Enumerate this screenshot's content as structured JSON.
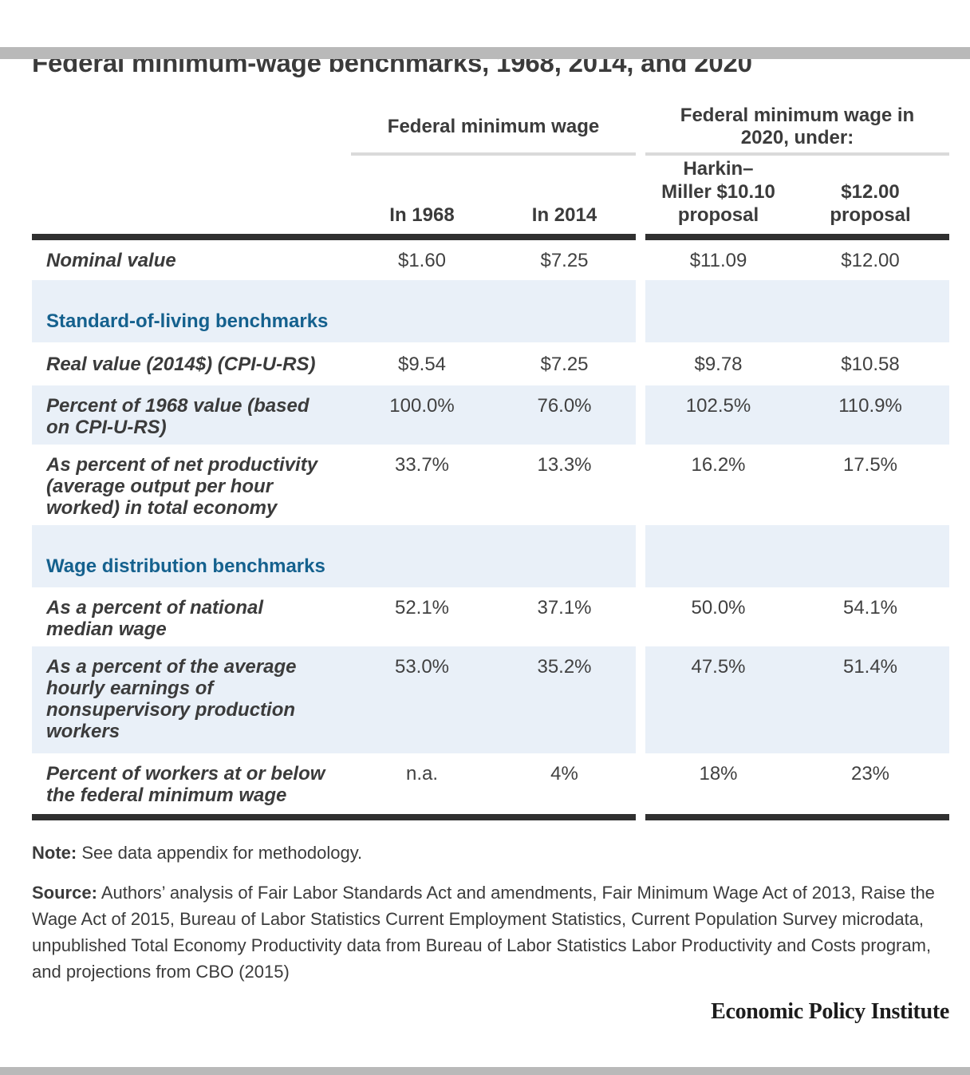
{
  "colors": {
    "accent_blue": "#15618e",
    "band_blue": "#e9f0f8",
    "bar_gray": "#b9b9b9",
    "rule_dark": "#303030",
    "text_dark": "#3b3b3b"
  },
  "chart_data": {
    "type": "table",
    "title": "Federal minimum-wage benchmarks, 1968, 2014, and 2020",
    "column_groups": [
      {
        "label": "Federal minimum wage"
      },
      {
        "label": "Federal minimum wage in\n2020, under:"
      }
    ],
    "columns": [
      {
        "label": "In 1968"
      },
      {
        "label": "In 2014"
      },
      {
        "label": "Harkin–\nMiller $10.10\nproposal"
      },
      {
        "label": "$12.00\nproposal"
      }
    ],
    "rows": [
      {
        "type": "data",
        "label": "Nominal value",
        "values": [
          "$1.60",
          "$7.25",
          "$11.09",
          "$12.00"
        ]
      },
      {
        "type": "section",
        "label": "Standard-of-living benchmarks"
      },
      {
        "type": "data",
        "label": "Real value (2014$) (CPI-U-RS)",
        "values": [
          "$9.54",
          "$7.25",
          "$9.78",
          "$10.58"
        ]
      },
      {
        "type": "data",
        "label": "Percent of 1968 value (based\non CPI-U-RS)",
        "values": [
          "100.0%",
          "76.0%",
          "102.5%",
          "110.9%"
        ]
      },
      {
        "type": "data",
        "label": "As percent of net productivity\n(average output per hour\nworked) in total economy",
        "values": [
          "33.7%",
          "13.3%",
          "16.2%",
          "17.5%"
        ]
      },
      {
        "type": "section",
        "label": "Wage distribution benchmarks"
      },
      {
        "type": "data",
        "label": "As a percent of national\nmedian wage",
        "values": [
          "52.1%",
          "37.1%",
          "50.0%",
          "54.1%"
        ]
      },
      {
        "type": "data",
        "label": "As a percent of the average\nhourly earnings of\nnonsupervisory production\nworkers",
        "values": [
          "53.0%",
          "35.2%",
          "47.5%",
          "51.4%"
        ]
      },
      {
        "type": "data",
        "label": "Percent of workers at or below\nthe federal minimum wage",
        "values": [
          "n.a.",
          "4%",
          "18%",
          "23%"
        ]
      }
    ]
  },
  "footer": {
    "note_label": "Note:",
    "note_text": " See data appendix for methodology.",
    "source_label": "Source:",
    "source_text": " Authors’ analysis of Fair Labor Standards Act and amendments, Fair Minimum Wage Act of 2013, Raise the Wage Act of 2015, Bureau of Labor Statistics Current Employment Statistics, Current Population Survey microdata, unpublished Total Economy Productivity data from Bureau of Labor Statistics Labor Productivity and Costs program, and projections from CBO (2015)",
    "logo": "Economic Policy Institute"
  }
}
